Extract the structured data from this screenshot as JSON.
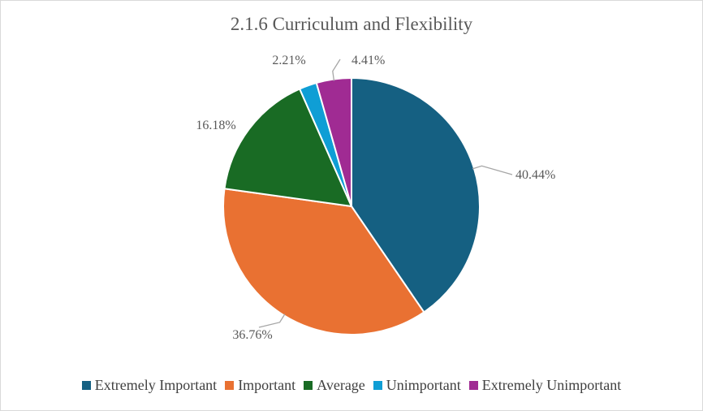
{
  "chart_data": {
    "type": "pie",
    "title": "2.1.6 Curriculum and Flexibility",
    "categories": [
      "Extremely Important",
      "Important",
      "Average",
      "Unimportant",
      "Extremely Unimportant"
    ],
    "values": [
      40.44,
      36.76,
      16.18,
      2.21,
      4.41
    ],
    "labels": [
      "40.44%",
      "36.76%",
      "16.18%",
      "2.21%",
      "4.41%"
    ],
    "colors": [
      "#156082",
      "#E97132",
      "#196B24",
      "#0F9ED5",
      "#A02B93"
    ],
    "legend": "bottom"
  }
}
